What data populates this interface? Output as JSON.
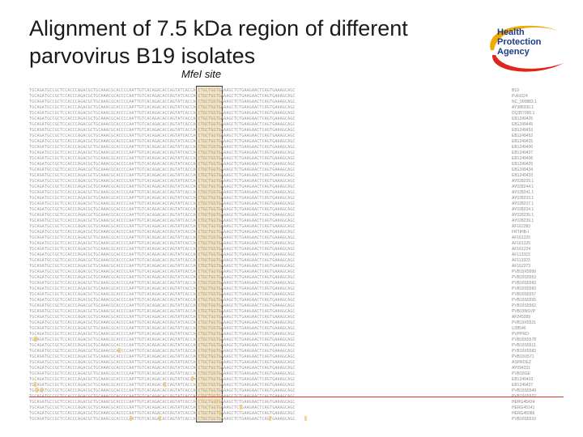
{
  "title": "Alignment of 7.5 kDa region of different parvovirus B19 isolates",
  "site_label": "MfeI site",
  "logo": {
    "line1": "Health",
    "line2": "Protection",
    "line3": "Agency",
    "colors": [
      "#1b3a8a",
      "#f2a900",
      "#e1251b"
    ]
  },
  "sequence": "TGCAGATGCCGCTCCACCCAGACGCTGCAAACGCACCCCAATTGTCACAGACACCAGTATCACCACCTGCTGGTGAAAGCTCTGAAGAACTCAGTGAAAGCAGC",
  "isolates": [
    "B19",
    "Pvb1024",
    "NC_000883.1",
    "AY386330.1",
    "DQ357065.1",
    "EB1249425",
    "EB1249445",
    "EB1249453",
    "EB1249452",
    "EB1249425",
    "EB1249400",
    "EB1249427",
    "EB1249406",
    "EB1249425",
    "EB1249434",
    "EB1249433",
    "AY028239.1",
    "AY028244.1",
    "AY028241.1",
    "AY028233.1",
    "AY028237.1",
    "AY028234.1",
    "AY028235.1",
    "AY028239.1",
    "AF162283",
    "FRTIHB-I",
    "AF161225",
    "AF161225",
    "AF161224",
    "AF113323",
    "AF113323",
    "AF162273",
    "PVB19X5999",
    "PVB19S5553",
    "PVB19S5560",
    "PVB19S5560",
    "PVB19S5557",
    "PVB19S5555",
    "PVB19S5562",
    "PVB19NSVP",
    "AF245999",
    "PVB19X5521",
    "U38546",
    "PVPPRO",
    "PVB19X5578",
    "PVB19S5511",
    "PVB19X5583",
    "PVB19U571",
    "ASPROEZ",
    "AY094231",
    "PVB19GE",
    "EB1249403",
    "EB1249427",
    "PVB19S5549",
    "PVB19S5522",
    "HERG45434",
    "HERG45141",
    "HERG45086",
    "PVB19S5510"
  ],
  "alignment_colors": {
    "mfei_highlight": "#e9c478",
    "divider": "#d93c2e",
    "mismatch": "#f0c86e"
  }
}
